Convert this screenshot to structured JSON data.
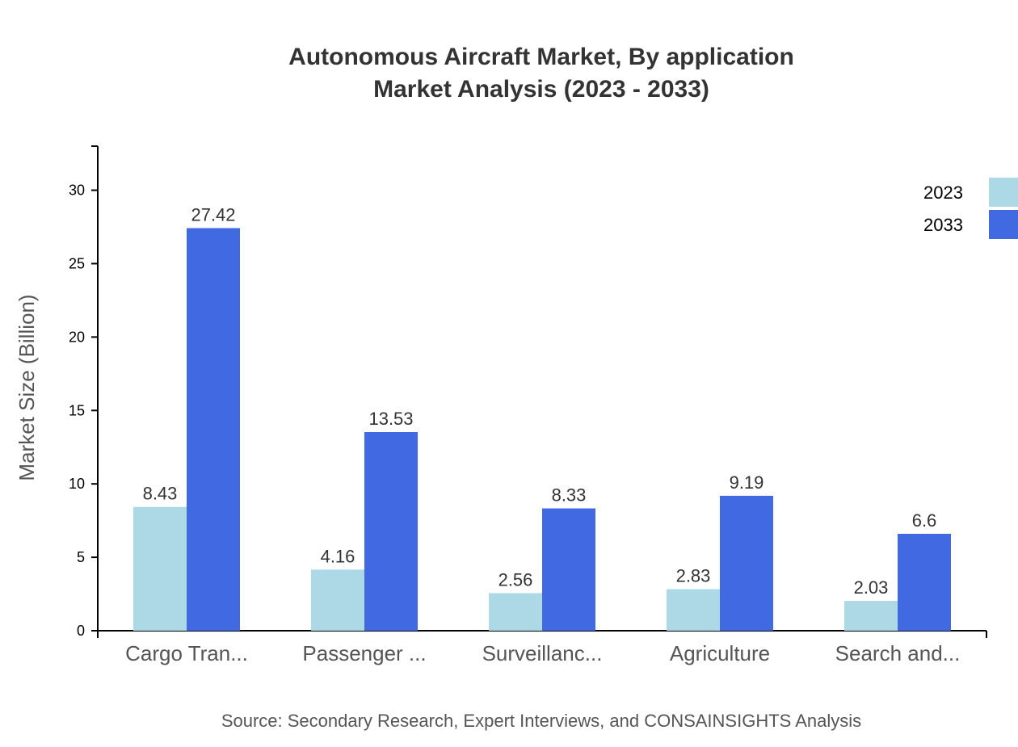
{
  "chart_data": {
    "type": "bar",
    "title": "Autonomous Aircraft Market, By application",
    "subtitle": "Market Analysis (2023 - 2033)",
    "xlabel": "",
    "ylabel": "Market Size (Billion)",
    "ylim": [
      0,
      33
    ],
    "yticks": [
      0,
      5,
      10,
      15,
      20,
      25,
      30
    ],
    "categories": [
      "Cargo Tran...",
      "Passenger ...",
      "Surveillanc...",
      "Agriculture",
      "Search and..."
    ],
    "series": [
      {
        "name": "2023",
        "color": "#add8e6",
        "values": [
          8.43,
          4.16,
          2.56,
          2.83,
          2.03
        ]
      },
      {
        "name": "2033",
        "color": "#4169e1",
        "values": [
          27.42,
          13.53,
          8.33,
          9.19,
          6.6
        ]
      }
    ],
    "legend": "top-right",
    "grid": false,
    "source": "Source: Secondary Research, Expert Interviews, and CONSAINSIGHTS Analysis"
  }
}
